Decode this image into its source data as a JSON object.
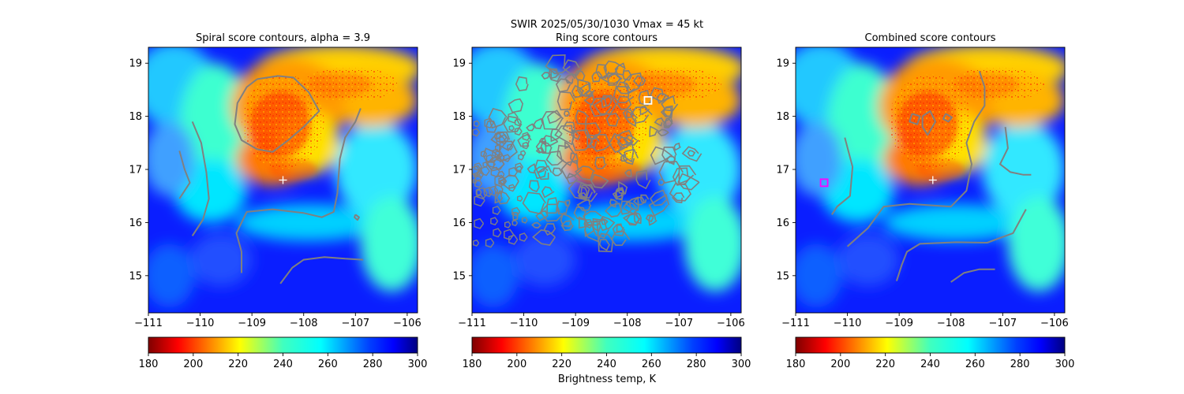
{
  "figure": {
    "suptitle": "SWIR  2025/05/30/1030    Vmax = 45 kt",
    "colorbar_label": "Brightness temp, K"
  },
  "chart_data": [
    {
      "type": "heatmap",
      "title": "Spiral score contours, alpha =  3.9",
      "xlim": [
        -111,
        -105.8
      ],
      "ylim": [
        14.3,
        19.3
      ],
      "x_ticks": [
        "−111",
        "−110",
        "−109",
        "−108",
        "−107",
        "−106"
      ],
      "x_tick_values": [
        -111,
        -110,
        -109,
        -108,
        -107,
        -106
      ],
      "y_ticks": [
        "15",
        "16",
        "17",
        "18",
        "19"
      ],
      "y_tick_values": [
        15,
        16,
        17,
        18,
        19
      ],
      "colorbar": {
        "range": [
          180,
          300
        ],
        "ticks": [
          "180",
          "200",
          "220",
          "240",
          "260",
          "280",
          "300"
        ],
        "cmap": "jet_r"
      },
      "markers": [
        {
          "kind": "plus",
          "x": -108.4,
          "y": 16.8,
          "color": "#ffffff"
        }
      ],
      "contours": [
        [
          [
            -108.9,
            18.7
          ],
          [
            -108.5,
            18.76
          ],
          [
            -108.2,
            18.73
          ],
          [
            -107.9,
            18.45
          ],
          [
            -107.7,
            18.1
          ],
          [
            -108.0,
            17.8
          ],
          [
            -108.3,
            17.55
          ],
          [
            -108.6,
            17.33
          ],
          [
            -108.9,
            17.38
          ],
          [
            -109.2,
            17.55
          ],
          [
            -109.33,
            17.85
          ],
          [
            -109.28,
            18.25
          ],
          [
            -109.1,
            18.55
          ],
          [
            -108.9,
            18.7
          ]
        ],
        [
          [
            -110.4,
            17.35
          ],
          [
            -110.3,
            17.0
          ],
          [
            -110.2,
            16.75
          ],
          [
            -110.4,
            16.45
          ]
        ],
        [
          [
            -110.15,
            17.9
          ],
          [
            -109.98,
            17.5
          ],
          [
            -109.88,
            16.95
          ],
          [
            -109.83,
            16.45
          ],
          [
            -109.95,
            16.05
          ],
          [
            -110.15,
            15.75
          ]
        ],
        [
          [
            -109.2,
            15.05
          ],
          [
            -109.2,
            15.45
          ],
          [
            -109.3,
            15.8
          ],
          [
            -109.1,
            16.2
          ],
          [
            -108.6,
            16.25
          ],
          [
            -108.0,
            16.18
          ],
          [
            -107.65,
            16.1
          ],
          [
            -107.42,
            16.2
          ],
          [
            -107.35,
            16.55
          ],
          [
            -107.3,
            17.2
          ],
          [
            -107.2,
            17.6
          ],
          [
            -107.0,
            17.9
          ],
          [
            -106.9,
            18.15
          ]
        ],
        [
          [
            -108.45,
            14.85
          ],
          [
            -108.22,
            15.15
          ],
          [
            -108.0,
            15.3
          ],
          [
            -107.6,
            15.35
          ],
          [
            -107.2,
            15.32
          ],
          [
            -106.85,
            15.3
          ]
        ],
        [
          [
            -107.0,
            16.15
          ],
          [
            -106.93,
            16.1
          ],
          [
            -106.96,
            16.05
          ],
          [
            -107.02,
            16.1
          ],
          [
            -107.0,
            16.15
          ]
        ]
      ]
    },
    {
      "type": "heatmap",
      "title": "Ring score contours",
      "xlim": [
        -111,
        -105.8
      ],
      "ylim": [
        14.3,
        19.3
      ],
      "x_ticks": [
        "−111",
        "−110",
        "−109",
        "−108",
        "−107",
        "−106"
      ],
      "x_tick_values": [
        -111,
        -110,
        -109,
        -108,
        -107,
        -106
      ],
      "y_ticks": [
        "15",
        "16",
        "17",
        "18",
        "19"
      ],
      "y_tick_values": [
        15,
        16,
        17,
        18,
        19
      ],
      "colorbar": {
        "range": [
          180,
          300
        ],
        "ticks": [
          "180",
          "200",
          "220",
          "240",
          "260",
          "280",
          "300"
        ],
        "cmap": "jet_r"
      },
      "markers": [
        {
          "kind": "square",
          "x": -107.6,
          "y": 18.3,
          "color": "#ffffff"
        }
      ],
      "ring_region": {
        "cx": -108.7,
        "cy": 17.3,
        "rx": 2.05,
        "ry": 1.75
      },
      "contours": []
    },
    {
      "type": "heatmap",
      "title": "Combined score contours",
      "xlim": [
        -111,
        -105.8
      ],
      "ylim": [
        14.3,
        19.3
      ],
      "x_ticks": [
        "−111",
        "−110",
        "−109",
        "−108",
        "−107",
        "−106"
      ],
      "x_tick_values": [
        -111,
        -110,
        -109,
        -108,
        -107,
        -106
      ],
      "y_ticks": [
        "15",
        "16",
        "17",
        "18",
        "19"
      ],
      "y_tick_values": [
        15,
        16,
        17,
        18,
        19
      ],
      "colorbar": {
        "range": [
          180,
          300
        ],
        "ticks": [
          "180",
          "200",
          "220",
          "240",
          "260",
          "280",
          "300"
        ],
        "cmap": "jet_r"
      },
      "markers": [
        {
          "kind": "plus",
          "x": -108.35,
          "y": 16.8,
          "color": "#ffffff"
        },
        {
          "kind": "square",
          "x": -110.45,
          "y": 16.75,
          "color": "#ff00ff"
        }
      ],
      "contours": [
        [
          [
            -108.55,
            18.0
          ],
          [
            -108.4,
            18.1
          ],
          [
            -108.3,
            17.9
          ],
          [
            -108.45,
            17.65
          ],
          [
            -108.55,
            17.8
          ],
          [
            -108.55,
            18.0
          ]
        ],
        [
          [
            -108.75,
            18.05
          ],
          [
            -108.6,
            18.0
          ],
          [
            -108.65,
            17.85
          ],
          [
            -108.8,
            17.9
          ],
          [
            -108.75,
            18.05
          ]
        ],
        [
          [
            -108.1,
            18.05
          ],
          [
            -107.98,
            17.98
          ],
          [
            -108.05,
            17.9
          ],
          [
            -108.15,
            17.95
          ],
          [
            -108.1,
            18.05
          ]
        ],
        [
          [
            -110.05,
            17.6
          ],
          [
            -109.9,
            17.05
          ],
          [
            -109.95,
            16.5
          ],
          [
            -110.2,
            16.3
          ],
          [
            -110.3,
            16.15
          ]
        ],
        [
          [
            -110.0,
            15.55
          ],
          [
            -109.6,
            15.9
          ],
          [
            -109.3,
            16.3
          ],
          [
            -108.8,
            16.35
          ],
          [
            -108.0,
            16.3
          ],
          [
            -107.7,
            16.6
          ],
          [
            -107.6,
            17.1
          ],
          [
            -107.7,
            17.5
          ],
          [
            -107.55,
            17.9
          ],
          [
            -107.35,
            18.2
          ],
          [
            -107.35,
            18.55
          ],
          [
            -107.45,
            18.85
          ]
        ],
        [
          [
            -106.95,
            17.8
          ],
          [
            -106.9,
            17.4
          ],
          [
            -107.05,
            17.1
          ],
          [
            -106.85,
            16.95
          ],
          [
            -106.6,
            16.9
          ],
          [
            -106.45,
            16.9
          ]
        ],
        [
          [
            -109.05,
            14.9
          ],
          [
            -108.95,
            15.2
          ],
          [
            -108.85,
            15.45
          ],
          [
            -108.6,
            15.6
          ],
          [
            -107.9,
            15.63
          ],
          [
            -107.3,
            15.62
          ],
          [
            -106.8,
            15.8
          ],
          [
            -106.55,
            16.25
          ]
        ],
        [
          [
            -108.0,
            14.88
          ],
          [
            -107.75,
            15.05
          ],
          [
            -107.45,
            15.12
          ],
          [
            -107.15,
            15.12
          ]
        ]
      ]
    }
  ]
}
